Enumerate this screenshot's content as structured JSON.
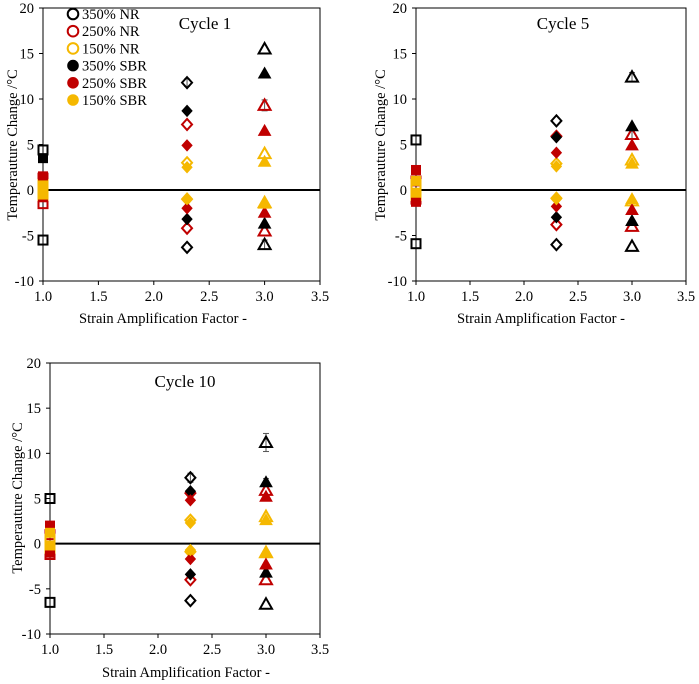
{
  "chart_data": [
    {
      "type": "scatter",
      "title": "Cycle 1",
      "xlabel": "Strain Amplification Factor -",
      "ylabel": "Temperauture Change /°C",
      "xlim": [
        1.0,
        3.5
      ],
      "ylim": [
        -10,
        20
      ],
      "xticks": [
        "1.0",
        "1.5",
        "2.0",
        "2.5",
        "3.0",
        "3.5"
      ],
      "yticks": [
        "-10",
        "-5",
        "0",
        "5",
        "10",
        "15",
        "20"
      ],
      "legend": [
        {
          "name": "350% NR",
          "color": "#000000",
          "filled": false
        },
        {
          "name": "250% NR",
          "color": "#c00000",
          "filled": false
        },
        {
          "name": "150% NR",
          "color": "#f5b800",
          "filled": false
        },
        {
          "name": "350% SBR",
          "color": "#000000",
          "filled": true
        },
        {
          "name": "250% SBR",
          "color": "#c00000",
          "filled": true
        },
        {
          "name": "150% SBR",
          "color": "#f5b800",
          "filled": true
        }
      ],
      "series": [
        {
          "name": "350% NR",
          "color": "#000000",
          "filled": false,
          "points": [
            {
              "x": 1.0,
              "y": 4.4,
              "m": "square"
            },
            {
              "x": 1.0,
              "y": -5.5,
              "m": "square"
            },
            {
              "x": 2.3,
              "y": 11.8,
              "m": "diamond",
              "err": 0.4
            },
            {
              "x": 2.3,
              "y": -6.3,
              "m": "diamond"
            },
            {
              "x": 3.0,
              "y": 15.5,
              "m": "triangle"
            },
            {
              "x": 3.0,
              "y": -6.0,
              "m": "triangle",
              "err": 0.5
            }
          ]
        },
        {
          "name": "250% NR",
          "color": "#c00000",
          "filled": false,
          "points": [
            {
              "x": 1.0,
              "y": 1.3,
              "m": "square"
            },
            {
              "x": 1.0,
              "y": -1.5,
              "m": "square"
            },
            {
              "x": 2.3,
              "y": 7.2,
              "m": "diamond"
            },
            {
              "x": 2.3,
              "y": -4.2,
              "m": "diamond"
            },
            {
              "x": 3.0,
              "y": 9.3,
              "m": "triangle",
              "err": 0.6
            },
            {
              "x": 3.0,
              "y": -4.5,
              "m": "triangle"
            }
          ]
        },
        {
          "name": "150% NR",
          "color": "#f5b800",
          "filled": false,
          "points": [
            {
              "x": 1.0,
              "y": 0.6,
              "m": "square"
            },
            {
              "x": 1.0,
              "y": -0.6,
              "m": "square"
            },
            {
              "x": 2.3,
              "y": 3.0,
              "m": "diamond"
            },
            {
              "x": 2.3,
              "y": -1.0,
              "m": "diamond"
            },
            {
              "x": 3.0,
              "y": 4.0,
              "m": "triangle"
            },
            {
              "x": 3.0,
              "y": -1.4,
              "m": "triangle"
            }
          ]
        },
        {
          "name": "350% SBR",
          "color": "#000000",
          "filled": true,
          "points": [
            {
              "x": 1.0,
              "y": 3.5,
              "m": "square"
            },
            {
              "x": 2.3,
              "y": 8.7,
              "m": "diamond"
            },
            {
              "x": 2.3,
              "y": -3.2,
              "m": "diamond"
            },
            {
              "x": 3.0,
              "y": 12.8,
              "m": "triangle"
            },
            {
              "x": 3.0,
              "y": -3.7,
              "m": "triangle"
            }
          ]
        },
        {
          "name": "250% SBR",
          "color": "#c00000",
          "filled": true,
          "points": [
            {
              "x": 1.0,
              "y": 1.5,
              "m": "square"
            },
            {
              "x": 1.0,
              "y": -0.8,
              "m": "square"
            },
            {
              "x": 2.3,
              "y": 4.9,
              "m": "diamond"
            },
            {
              "x": 2.3,
              "y": -2.0,
              "m": "diamond"
            },
            {
              "x": 3.0,
              "y": 6.5,
              "m": "triangle"
            },
            {
              "x": 3.0,
              "y": -2.5,
              "m": "triangle"
            }
          ]
        },
        {
          "name": "150% SBR",
          "color": "#f5b800",
          "filled": true,
          "points": [
            {
              "x": 1.0,
              "y": 0.5,
              "m": "square"
            },
            {
              "x": 1.0,
              "y": -0.5,
              "m": "square"
            },
            {
              "x": 2.3,
              "y": 2.5,
              "m": "diamond"
            },
            {
              "x": 2.3,
              "y": -1.0,
              "m": "diamond"
            },
            {
              "x": 3.0,
              "y": 3.1,
              "m": "triangle"
            },
            {
              "x": 3.0,
              "y": -1.5,
              "m": "triangle"
            }
          ]
        }
      ]
    },
    {
      "type": "scatter",
      "title": "Cycle 5",
      "xlabel": "Strain Amplification Factor -",
      "ylabel": "Temperauture Change /°C",
      "xlim": [
        1.0,
        3.5
      ],
      "ylim": [
        -10,
        20
      ],
      "xticks": [
        "1.0",
        "1.5",
        "2.0",
        "2.5",
        "3.0",
        "3.5"
      ],
      "yticks": [
        "-10",
        "-5",
        "0",
        "5",
        "10",
        "15",
        "20"
      ],
      "series": [
        {
          "name": "350% NR",
          "color": "#000000",
          "filled": false,
          "points": [
            {
              "x": 1.0,
              "y": 5.5,
              "m": "square"
            },
            {
              "x": 1.0,
              "y": -5.9,
              "m": "square"
            },
            {
              "x": 2.3,
              "y": 7.6,
              "m": "diamond"
            },
            {
              "x": 2.3,
              "y": -6.0,
              "m": "diamond"
            },
            {
              "x": 3.0,
              "y": 12.4,
              "m": "triangle",
              "err": 0.5
            },
            {
              "x": 3.0,
              "y": -6.2,
              "m": "triangle"
            }
          ]
        },
        {
          "name": "250% NR",
          "color": "#c00000",
          "filled": false,
          "points": [
            {
              "x": 1.0,
              "y": 1.0,
              "m": "square"
            },
            {
              "x": 1.0,
              "y": -1.0,
              "m": "square"
            },
            {
              "x": 2.3,
              "y": 5.9,
              "m": "diamond"
            },
            {
              "x": 2.3,
              "y": -3.8,
              "m": "diamond"
            },
            {
              "x": 3.0,
              "y": 6.1,
              "m": "triangle",
              "err": 0.5
            },
            {
              "x": 3.0,
              "y": -4.0,
              "m": "triangle"
            }
          ]
        },
        {
          "name": "150% NR",
          "color": "#f5b800",
          "filled": false,
          "points": [
            {
              "x": 1.0,
              "y": 0.6,
              "m": "square"
            },
            {
              "x": 1.0,
              "y": -0.6,
              "m": "square"
            },
            {
              "x": 2.3,
              "y": 2.9,
              "m": "diamond"
            },
            {
              "x": 2.3,
              "y": -0.9,
              "m": "diamond"
            },
            {
              "x": 3.0,
              "y": 3.3,
              "m": "triangle"
            },
            {
              "x": 3.0,
              "y": -1.2,
              "m": "triangle"
            }
          ]
        },
        {
          "name": "350% SBR",
          "color": "#000000",
          "filled": true,
          "points": [
            {
              "x": 2.3,
              "y": 5.8,
              "m": "diamond"
            },
            {
              "x": 2.3,
              "y": -3.0,
              "m": "diamond"
            },
            {
              "x": 3.0,
              "y": 7.0,
              "m": "triangle"
            },
            {
              "x": 3.0,
              "y": -3.4,
              "m": "triangle"
            }
          ]
        },
        {
          "name": "250% SBR",
          "color": "#c00000",
          "filled": true,
          "points": [
            {
              "x": 1.0,
              "y": 2.2,
              "m": "square"
            },
            {
              "x": 1.0,
              "y": -1.3,
              "m": "square"
            },
            {
              "x": 2.3,
              "y": 4.1,
              "m": "diamond"
            },
            {
              "x": 2.3,
              "y": -1.8,
              "m": "diamond"
            },
            {
              "x": 3.0,
              "y": 4.9,
              "m": "triangle"
            },
            {
              "x": 3.0,
              "y": -2.2,
              "m": "triangle"
            }
          ]
        },
        {
          "name": "150% SBR",
          "color": "#f5b800",
          "filled": true,
          "points": [
            {
              "x": 1.0,
              "y": 1.0,
              "m": "square"
            },
            {
              "x": 1.0,
              "y": -0.3,
              "m": "square"
            },
            {
              "x": 2.3,
              "y": 2.6,
              "m": "diamond"
            },
            {
              "x": 2.3,
              "y": -1.0,
              "m": "diamond"
            },
            {
              "x": 3.0,
              "y": 2.9,
              "m": "triangle"
            },
            {
              "x": 3.0,
              "y": -1.0,
              "m": "triangle"
            }
          ]
        }
      ]
    },
    {
      "type": "scatter",
      "title": "Cycle 10",
      "xlabel": "Strain Amplification Factor -",
      "ylabel": "Temperauture Change /°C",
      "xlim": [
        1.0,
        3.5
      ],
      "ylim": [
        -10,
        20
      ],
      "xticks": [
        "1.0",
        "1.5",
        "2.0",
        "2.5",
        "3.0",
        "3.5"
      ],
      "yticks": [
        "-10",
        "-5",
        "0",
        "5",
        "10",
        "15",
        "20"
      ],
      "series": [
        {
          "name": "350% NR",
          "color": "#000000",
          "filled": false,
          "points": [
            {
              "x": 1.0,
              "y": 5.0,
              "m": "square"
            },
            {
              "x": 1.0,
              "y": -6.5,
              "m": "square"
            },
            {
              "x": 2.3,
              "y": 7.3,
              "m": "diamond",
              "err": 0.5
            },
            {
              "x": 2.3,
              "y": -6.3,
              "m": "diamond"
            },
            {
              "x": 3.0,
              "y": 11.2,
              "m": "triangle",
              "err": 1.0
            },
            {
              "x": 3.0,
              "y": -6.7,
              "m": "triangle"
            }
          ]
        },
        {
          "name": "250% NR",
          "color": "#c00000",
          "filled": false,
          "points": [
            {
              "x": 1.0,
              "y": 1.0,
              "m": "square"
            },
            {
              "x": 1.0,
              "y": -1.2,
              "m": "square"
            },
            {
              "x": 2.3,
              "y": 5.6,
              "m": "diamond"
            },
            {
              "x": 2.3,
              "y": -4.0,
              "m": "diamond"
            },
            {
              "x": 3.0,
              "y": 5.9,
              "m": "triangle"
            },
            {
              "x": 3.0,
              "y": -4.0,
              "m": "triangle"
            }
          ]
        },
        {
          "name": "150% NR",
          "color": "#f5b800",
          "filled": false,
          "points": [
            {
              "x": 1.0,
              "y": 0.5,
              "m": "square"
            },
            {
              "x": 1.0,
              "y": -0.5,
              "m": "square"
            },
            {
              "x": 2.3,
              "y": 2.6,
              "m": "diamond"
            },
            {
              "x": 2.3,
              "y": -0.9,
              "m": "diamond"
            },
            {
              "x": 3.0,
              "y": 3.0,
              "m": "triangle"
            },
            {
              "x": 3.0,
              "y": -1.0,
              "m": "triangle"
            }
          ]
        },
        {
          "name": "350% SBR",
          "color": "#000000",
          "filled": true,
          "points": [
            {
              "x": 2.3,
              "y": 5.8,
              "m": "diamond"
            },
            {
              "x": 2.3,
              "y": -3.4,
              "m": "diamond"
            },
            {
              "x": 3.0,
              "y": 6.8,
              "m": "triangle",
              "err": 0.4
            },
            {
              "x": 3.0,
              "y": -3.2,
              "m": "triangle"
            }
          ]
        },
        {
          "name": "250% SBR",
          "color": "#c00000",
          "filled": true,
          "points": [
            {
              "x": 1.0,
              "y": 2.0,
              "m": "square"
            },
            {
              "x": 1.0,
              "y": -1.0,
              "m": "square"
            },
            {
              "x": 2.3,
              "y": 4.8,
              "m": "diamond"
            },
            {
              "x": 2.3,
              "y": -1.7,
              "m": "diamond"
            },
            {
              "x": 3.0,
              "y": 5.2,
              "m": "triangle"
            },
            {
              "x": 3.0,
              "y": -2.3,
              "m": "triangle"
            }
          ]
        },
        {
          "name": "150% SBR",
          "color": "#f5b800",
          "filled": true,
          "points": [
            {
              "x": 1.0,
              "y": 1.2,
              "m": "square"
            },
            {
              "x": 1.0,
              "y": -0.2,
              "m": "square"
            },
            {
              "x": 2.3,
              "y": 2.3,
              "m": "diamond"
            },
            {
              "x": 2.3,
              "y": -0.7,
              "m": "diamond"
            },
            {
              "x": 3.0,
              "y": 2.6,
              "m": "triangle"
            },
            {
              "x": 3.0,
              "y": -0.9,
              "m": "triangle"
            }
          ]
        }
      ]
    }
  ]
}
